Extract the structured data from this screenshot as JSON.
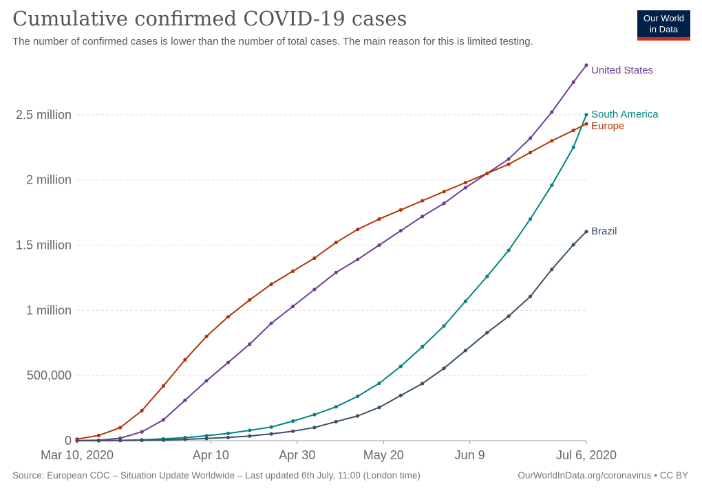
{
  "header": {
    "title": "Cumulative confirmed COVID-19 cases",
    "subtitle": "The number of confirmed cases is lower than the number of total cases. The main reason for this is limited testing."
  },
  "logo": {
    "line1": "Our World",
    "line2": "in Data"
  },
  "footer": {
    "source": "Source: European CDC – Situation Update Worldwide – Last updated 6th July, 11:00 (London time)",
    "credit": "OurWorldInData.org/coronavirus • CC BY"
  },
  "chart_data": {
    "type": "line",
    "title": "Cumulative confirmed COVID-19 cases",
    "subtitle": "The number of confirmed cases is lower than the number of total cases. The main reason for this is limited testing.",
    "x_start": "2020-03-10",
    "x_end": "2020-07-06",
    "ylim": [
      0,
      3000000
    ],
    "grid": true,
    "legend": "labels at line ends (right)",
    "y_ticks": [
      {
        "value": 0,
        "label": "0"
      },
      {
        "value": 500000,
        "label": "500,000"
      },
      {
        "value": 1000000,
        "label": "1 million"
      },
      {
        "value": 1500000,
        "label": "1.5 million"
      },
      {
        "value": 2000000,
        "label": "2 million"
      },
      {
        "value": 2500000,
        "label": "2.5 million"
      }
    ],
    "x_ticks": [
      {
        "date": "2020-03-10",
        "label": "Mar 10, 2020"
      },
      {
        "date": "2020-04-10",
        "label": "Apr 10"
      },
      {
        "date": "2020-04-30",
        "label": "Apr 30"
      },
      {
        "date": "2020-05-20",
        "label": "May 20"
      },
      {
        "date": "2020-06-09",
        "label": "Jun 9"
      },
      {
        "date": "2020-07-06",
        "label": "Jul 6, 2020"
      }
    ],
    "series": [
      {
        "name": "United States",
        "color": "#6d3e91",
        "points": [
          [
            "2020-03-10",
            900
          ],
          [
            "2020-03-15",
            3500
          ],
          [
            "2020-03-20",
            19000
          ],
          [
            "2020-03-25",
            68000
          ],
          [
            "2020-03-30",
            160000
          ],
          [
            "2020-04-04",
            310000
          ],
          [
            "2020-04-09",
            460000
          ],
          [
            "2020-04-14",
            600000
          ],
          [
            "2020-04-19",
            740000
          ],
          [
            "2020-04-24",
            900000
          ],
          [
            "2020-04-29",
            1030000
          ],
          [
            "2020-05-04",
            1160000
          ],
          [
            "2020-05-09",
            1290000
          ],
          [
            "2020-05-14",
            1390000
          ],
          [
            "2020-05-19",
            1500000
          ],
          [
            "2020-05-24",
            1610000
          ],
          [
            "2020-05-29",
            1720000
          ],
          [
            "2020-06-03",
            1820000
          ],
          [
            "2020-06-08",
            1940000
          ],
          [
            "2020-06-13",
            2050000
          ],
          [
            "2020-06-18",
            2160000
          ],
          [
            "2020-06-23",
            2320000
          ],
          [
            "2020-06-28",
            2520000
          ],
          [
            "2020-07-03",
            2750000
          ],
          [
            "2020-07-06",
            2880000
          ]
        ]
      },
      {
        "name": "South America",
        "color": "#00847e",
        "points": [
          [
            "2020-03-10",
            100
          ],
          [
            "2020-03-15",
            500
          ],
          [
            "2020-03-20",
            2500
          ],
          [
            "2020-03-25",
            7000
          ],
          [
            "2020-03-30",
            14000
          ],
          [
            "2020-04-04",
            23000
          ],
          [
            "2020-04-09",
            38000
          ],
          [
            "2020-04-14",
            56000
          ],
          [
            "2020-04-19",
            79000
          ],
          [
            "2020-04-24",
            105000
          ],
          [
            "2020-04-29",
            150000
          ],
          [
            "2020-05-04",
            200000
          ],
          [
            "2020-05-09",
            260000
          ],
          [
            "2020-05-14",
            340000
          ],
          [
            "2020-05-19",
            440000
          ],
          [
            "2020-05-24",
            570000
          ],
          [
            "2020-05-29",
            720000
          ],
          [
            "2020-06-03",
            880000
          ],
          [
            "2020-06-08",
            1070000
          ],
          [
            "2020-06-13",
            1260000
          ],
          [
            "2020-06-18",
            1460000
          ],
          [
            "2020-06-23",
            1700000
          ],
          [
            "2020-06-28",
            1960000
          ],
          [
            "2020-07-03",
            2250000
          ],
          [
            "2020-07-06",
            2500000
          ]
        ]
      },
      {
        "name": "Europe",
        "color": "#b13507",
        "points": [
          [
            "2020-03-10",
            12000
          ],
          [
            "2020-03-15",
            40000
          ],
          [
            "2020-03-20",
            100000
          ],
          [
            "2020-03-25",
            230000
          ],
          [
            "2020-03-30",
            420000
          ],
          [
            "2020-04-04",
            620000
          ],
          [
            "2020-04-09",
            800000
          ],
          [
            "2020-04-14",
            950000
          ],
          [
            "2020-04-19",
            1080000
          ],
          [
            "2020-04-24",
            1200000
          ],
          [
            "2020-04-29",
            1300000
          ],
          [
            "2020-05-04",
            1400000
          ],
          [
            "2020-05-09",
            1520000
          ],
          [
            "2020-05-14",
            1620000
          ],
          [
            "2020-05-19",
            1700000
          ],
          [
            "2020-05-24",
            1770000
          ],
          [
            "2020-05-29",
            1840000
          ],
          [
            "2020-06-03",
            1910000
          ],
          [
            "2020-06-08",
            1980000
          ],
          [
            "2020-06-13",
            2050000
          ],
          [
            "2020-06-18",
            2120000
          ],
          [
            "2020-06-23",
            2210000
          ],
          [
            "2020-06-28",
            2300000
          ],
          [
            "2020-07-03",
            2380000
          ],
          [
            "2020-07-06",
            2430000
          ]
        ]
      },
      {
        "name": "Brazil",
        "color": "#3c4e66",
        "points": [
          [
            "2020-03-10",
            30
          ],
          [
            "2020-03-15",
            200
          ],
          [
            "2020-03-20",
            900
          ],
          [
            "2020-03-25",
            2400
          ],
          [
            "2020-03-30",
            4600
          ],
          [
            "2020-04-04",
            10000
          ],
          [
            "2020-04-09",
            17000
          ],
          [
            "2020-04-14",
            25000
          ],
          [
            "2020-04-19",
            36000
          ],
          [
            "2020-04-24",
            52000
          ],
          [
            "2020-04-29",
            73000
          ],
          [
            "2020-05-04",
            101000
          ],
          [
            "2020-05-09",
            146000
          ],
          [
            "2020-05-14",
            190000
          ],
          [
            "2020-05-19",
            255000
          ],
          [
            "2020-05-24",
            347000
          ],
          [
            "2020-05-29",
            438000
          ],
          [
            "2020-06-03",
            555000
          ],
          [
            "2020-06-08",
            692000
          ],
          [
            "2020-06-13",
            829000
          ],
          [
            "2020-06-18",
            955000
          ],
          [
            "2020-06-23",
            1106000
          ],
          [
            "2020-06-28",
            1314000
          ],
          [
            "2020-07-03",
            1503000
          ],
          [
            "2020-07-06",
            1604000
          ]
        ]
      }
    ]
  }
}
